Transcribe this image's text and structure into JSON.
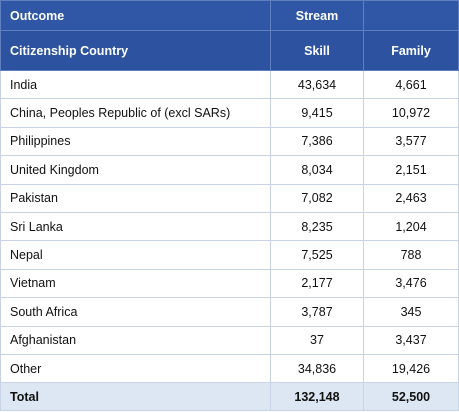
{
  "table": {
    "header": {
      "row_label": "Outcome",
      "group": "Stream",
      "columns": [
        "Citizenship Country",
        "Skill",
        "Family"
      ]
    },
    "rows": [
      [
        "India",
        "43,634",
        "4,661"
      ],
      [
        "China, Peoples Republic of (excl SARs)",
        "9,415",
        "10,972"
      ],
      [
        "Philippines",
        "7,386",
        "3,577"
      ],
      [
        "United Kingdom",
        "8,034",
        "2,151"
      ],
      [
        "Pakistan",
        "7,082",
        "2,463"
      ],
      [
        "Sri Lanka",
        "8,235",
        "1,204"
      ],
      [
        "Nepal",
        "7,525",
        "788"
      ],
      [
        "Vietnam",
        "2,177",
        "3,476"
      ],
      [
        "South Africa",
        "3,787",
        "345"
      ],
      [
        "Afghanistan",
        "37",
        "3,437"
      ],
      [
        "Other",
        "34,836",
        "19,426"
      ]
    ],
    "total": [
      "Total",
      "132,148",
      "52,500"
    ]
  }
}
